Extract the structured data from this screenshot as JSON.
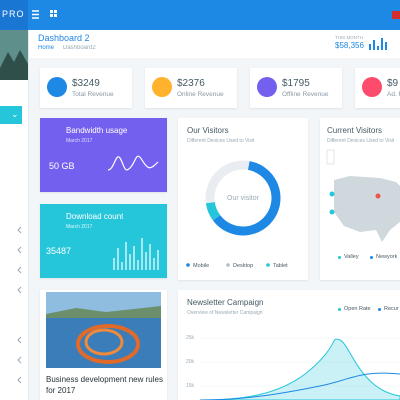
{
  "topbar": {
    "brand": "PRO"
  },
  "header": {
    "title": "Dashboard 2",
    "breadcrumb": [
      "Home",
      "Dashboard2"
    ],
    "month_label": "THIS MONTH",
    "month_value": "$58,356"
  },
  "stats": [
    {
      "value": "$3249",
      "label": "Total Revenue"
    },
    {
      "value": "$2376",
      "label": "Online Revenue"
    },
    {
      "value": "$1795",
      "label": "Offline Revenue"
    },
    {
      "value": "$9",
      "label": "Ad. R"
    }
  ],
  "bandwidth": {
    "title": "Bandwidth usage",
    "date": "March 2017",
    "value": "50 GB"
  },
  "download": {
    "title": "Download count",
    "date": "March 2017",
    "value": "35487"
  },
  "visitors": {
    "title": "Our Visitors",
    "subtitle": "Different Devices Used to Visit",
    "center": "Our visitor"
  },
  "chart_data": {
    "type": "pie",
    "categories": [
      "Mobile",
      "Desktop",
      "Tablet"
    ],
    "values": [
      62,
      30,
      8
    ],
    "colors": [
      "#1e88e5",
      "#e9edf2",
      "#26c6da"
    ]
  },
  "current_visitors": {
    "title": "Current Visitors",
    "subtitle": "Different Devices Used to Visit",
    "legend": [
      "Valley",
      "Newyork"
    ]
  },
  "blog": {
    "title": "Business development new rules for 2017"
  },
  "newsletter": {
    "title": "Newsletter Campaign",
    "subtitle": "Overview of Newsletter Campaign",
    "legend": [
      "Open Rate",
      "Recur"
    ],
    "yticks": [
      "25k",
      "20k",
      "15k"
    ]
  }
}
